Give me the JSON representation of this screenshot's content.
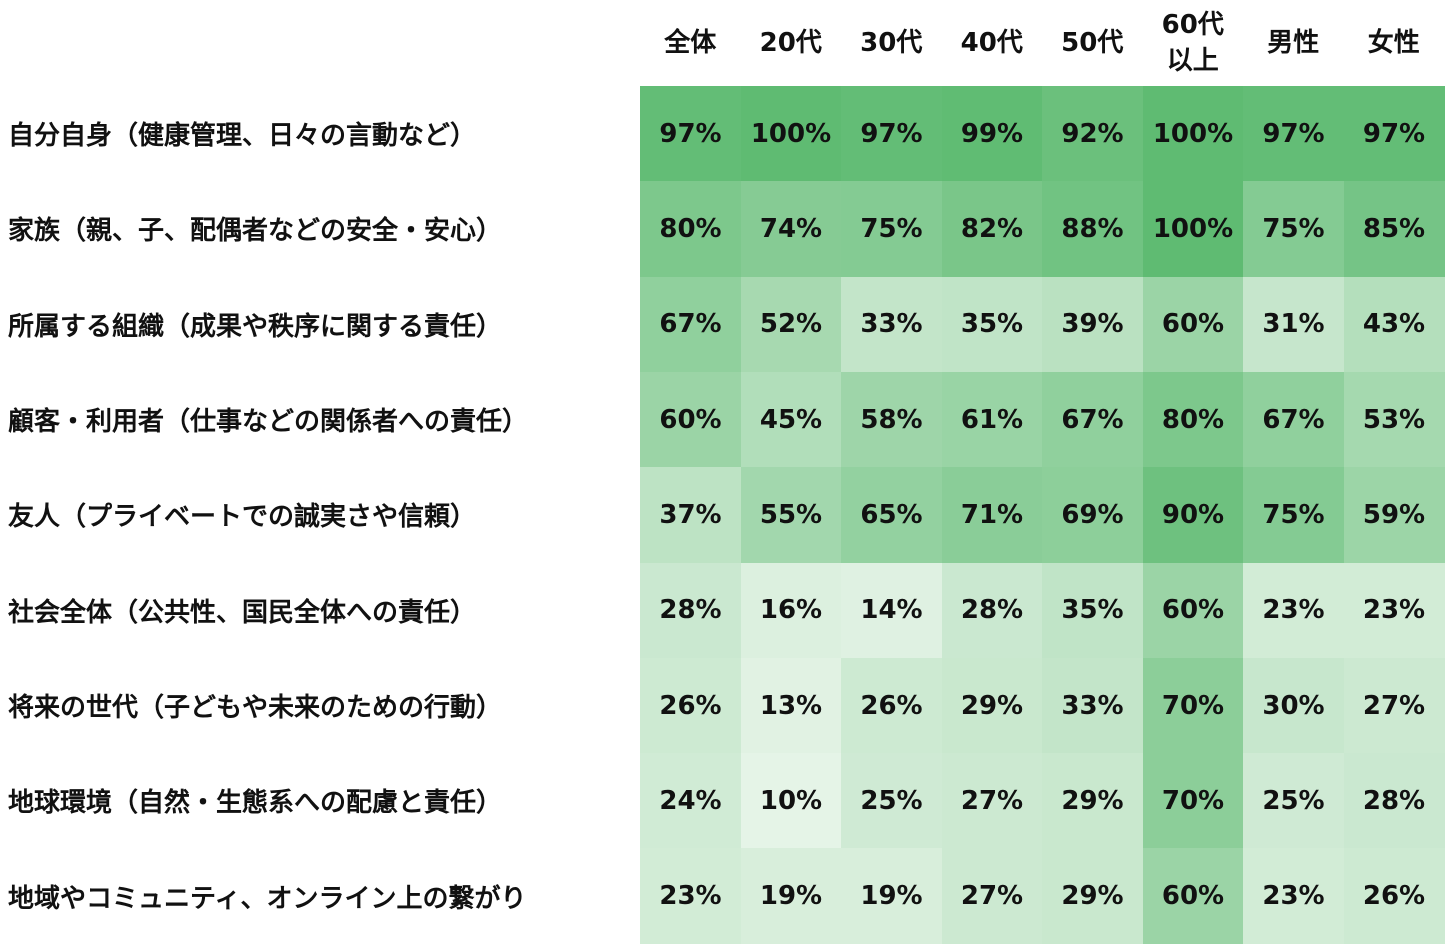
{
  "chart_data": {
    "type": "heatmap",
    "columns": [
      "全体",
      "20代",
      "30代",
      "40代",
      "50代",
      "60代\n以上",
      "男性",
      "女性"
    ],
    "rows": [
      "自分自身（健康管理、日々の言動など）",
      "家族（親、子、配偶者などの安全・安心）",
      "所属する組織（成果や秩序に関する責任）",
      "顧客・利用者（仕事などの関係者への責任）",
      "友人（プライベートでの誠実さや信頼）",
      "社会全体（公共性、国民全体への責任）",
      "将来の世代（子どもや未来のための行動）",
      "地球環境（自然・生態系への配慮と責任）",
      "地域やコミュニティ、オンライン上の繋がり"
    ],
    "values": [
      [
        97,
        100,
        97,
        99,
        92,
        100,
        97,
        97
      ],
      [
        80,
        74,
        75,
        82,
        88,
        100,
        75,
        85
      ],
      [
        67,
        52,
        33,
        35,
        39,
        60,
        31,
        43
      ],
      [
        60,
        45,
        58,
        61,
        67,
        80,
        67,
        53
      ],
      [
        37,
        55,
        65,
        71,
        69,
        90,
        75,
        59
      ],
      [
        28,
        16,
        14,
        28,
        35,
        60,
        23,
        23
      ],
      [
        26,
        13,
        26,
        29,
        33,
        70,
        30,
        27
      ],
      [
        24,
        10,
        25,
        27,
        29,
        70,
        25,
        28
      ],
      [
        23,
        19,
        19,
        27,
        29,
        60,
        23,
        26
      ]
    ],
    "value_suffix": "%",
    "color_low": "#f4faf4",
    "color_high": "#5fbb72"
  }
}
